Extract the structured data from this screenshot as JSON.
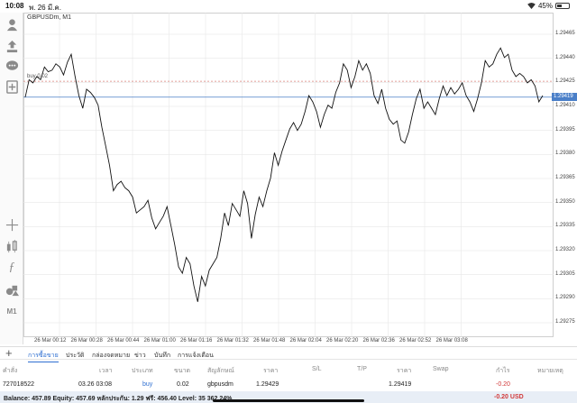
{
  "status_bar": {
    "time": "10:08",
    "date": "พ. 26 มี.ค.",
    "battery": "45%",
    "battery_level": 0.45
  },
  "toolbar": {
    "tools": [
      "account-icon",
      "trade-icon",
      "chat-icon",
      "new-order-icon",
      "crosshair-icon",
      "indicators-icon",
      "function-icon",
      "objects-icon",
      "timeframe-icon"
    ],
    "timeframe_label": "M1"
  },
  "chart": {
    "symbol_label": "GBPUSDm, M1",
    "buy_line_label": "buy 0.02",
    "current_price": "1.29419",
    "price_ticks": [
      "1.29465",
      "1.29440",
      "1.29425",
      "1.29410",
      "1.29395",
      "1.29380",
      "1.29365",
      "1.29350",
      "1.29335",
      "1.29320",
      "1.29305",
      "1.29290",
      "1.29275"
    ],
    "time_ticks": [
      "26 Mar 00:12",
      "26 Mar 00:28",
      "26 Mar 00:44",
      "26 Mar 01:00",
      "26 Mar 01:16",
      "26 Mar 01:32",
      "26 Mar 01:48",
      "26 Mar 02:04",
      "26 Mar 02:20",
      "26 Mar 02:36",
      "26 Mar 02:52",
      "26 Mar 03:08"
    ],
    "colors": {
      "line": "#111111",
      "grid": "#e6e6e6",
      "buy_line": "#d9827a",
      "bid_line": "#4a7fc8"
    }
  },
  "chart_data": {
    "type": "line",
    "buy_level": 1.29429,
    "bid_level": 1.29419,
    "ylim": [
      1.2927,
      1.2947
    ],
    "y": [
      1.29419,
      1.2943,
      1.29428,
      1.29432,
      1.2943,
      1.29438,
      1.29435,
      1.29436,
      1.2944,
      1.29438,
      1.29433,
      1.29441,
      1.29446,
      1.29432,
      1.2942,
      1.29412,
      1.29424,
      1.29422,
      1.29419,
      1.29414,
      1.294,
      1.29388,
      1.29376,
      1.2936,
      1.29364,
      1.29366,
      1.29362,
      1.2936,
      1.29356,
      1.29346,
      1.29348,
      1.2935,
      1.29354,
      1.29343,
      1.29336,
      1.2934,
      1.29344,
      1.2935,
      1.29338,
      1.29326,
      1.29312,
      1.29308,
      1.29318,
      1.29314,
      1.293,
      1.2929,
      1.29306,
      1.293,
      1.2931,
      1.29314,
      1.29318,
      1.2933,
      1.29346,
      1.29338,
      1.29352,
      1.29348,
      1.29344,
      1.2936,
      1.29352,
      1.2933,
      1.29345,
      1.29356,
      1.2935,
      1.2936,
      1.29368,
      1.29384,
      1.29376,
      1.29385,
      1.29392,
      1.29399,
      1.29403,
      1.29398,
      1.29402,
      1.2941,
      1.2942,
      1.29416,
      1.2941,
      1.294,
      1.29408,
      1.29414,
      1.29412,
      1.29422,
      1.29428,
      1.2944,
      1.29436,
      1.29425,
      1.29432,
      1.29442,
      1.29436,
      1.2944,
      1.29434,
      1.2942,
      1.29415,
      1.29424,
      1.29412,
      1.29405,
      1.29402,
      1.29404,
      1.29392,
      1.2939,
      1.29397,
      1.29408,
      1.29418,
      1.29424,
      1.29412,
      1.29416,
      1.29412,
      1.29408,
      1.29418,
      1.29426,
      1.2942,
      1.29425,
      1.29421,
      1.29424,
      1.29428,
      1.2942,
      1.29416,
      1.2941,
      1.29418,
      1.29428,
      1.29442,
      1.29438,
      1.2944,
      1.29446,
      1.2945,
      1.29444,
      1.29446,
      1.29436,
      1.29432,
      1.29434,
      1.29432,
      1.29428,
      1.2943,
      1.29426,
      1.29416,
      1.2942
    ]
  },
  "tabs": {
    "items": [
      "การซื้อขาย",
      "ประวัติ",
      "กล่องจดหมาย",
      "ข่าว",
      "บันทึก",
      "การแจ้งเตือน"
    ],
    "active": "การซื้อขาย"
  },
  "orders": {
    "headers": [
      "คำสั่ง",
      "เวลา",
      "ประเภท",
      "ขนาด",
      "สัญลักษณ์",
      "ราคา",
      "S/L",
      "T/P",
      "ราคา",
      "Swap",
      "กำไร",
      "หมายเหตุ"
    ],
    "row": {
      "id": "727018522",
      "time": "03.26 03:08",
      "type": "buy",
      "size": "0.02",
      "symbol": "gbpusdm",
      "open_price": "1.29429",
      "current_price": "1.29419",
      "profit": "-0.20"
    }
  },
  "balance": {
    "summary": "Balance: 457.89 Equity: 457.69 หลักประกัน: 1.29 ฟรี: 456.40 Level: 35 362.24%",
    "total": "-0.20  USD"
  }
}
